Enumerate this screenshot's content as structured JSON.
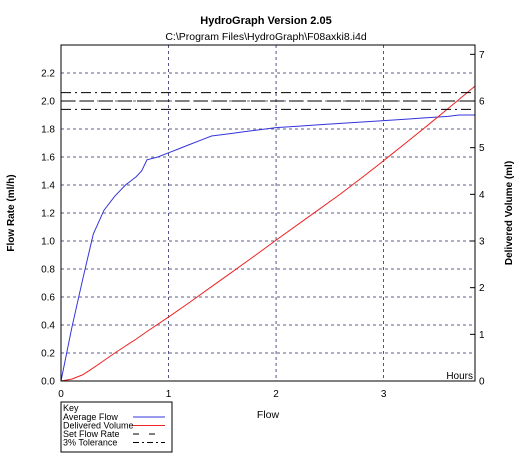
{
  "chart_data": {
    "type": "line",
    "title": "HydroGraph Version 2.05",
    "subtitle": "C:\\Program Files\\HydroGraph\\F08axki8.i4d",
    "xlabel": "Flow",
    "x_unit_label": "Hours",
    "ylabel": "Flow Rate (ml/h)",
    "y2label": "Delivered Volume (ml)",
    "xlim": [
      0,
      3.85
    ],
    "ylim": [
      0,
      2.4
    ],
    "y2lim": [
      0,
      7.2
    ],
    "x_ticks": [
      "0",
      "1",
      "2",
      "3"
    ],
    "y_ticks": [
      "0.0",
      "0.2",
      "0.4",
      "0.6",
      "0.8",
      "1.0",
      "1.2",
      "1.4",
      "1.6",
      "1.8",
      "2.0",
      "2.2"
    ],
    "y2_ticks": [
      "0",
      "1",
      "2",
      "3",
      "4",
      "5",
      "6",
      "7"
    ],
    "grid": true,
    "legend_position": "bottom-left",
    "legend_title": "Key",
    "series": [
      {
        "name": "Average Flow",
        "color": "#3333dd",
        "style": "solid",
        "axis": "left",
        "x": [
          0,
          0.1,
          0.2,
          0.3,
          0.4,
          0.5,
          0.6,
          0.7,
          0.75,
          0.8,
          0.9,
          1.0,
          1.1,
          1.2,
          1.3,
          1.4,
          1.5,
          1.6,
          1.7,
          1.8,
          1.9,
          2.0,
          2.2,
          2.4,
          2.6,
          2.8,
          3.0,
          3.2,
          3.4,
          3.6,
          3.7,
          3.85
        ],
        "y": [
          0,
          0.38,
          0.72,
          1.05,
          1.22,
          1.32,
          1.4,
          1.46,
          1.5,
          1.58,
          1.6,
          1.63,
          1.66,
          1.69,
          1.72,
          1.75,
          1.76,
          1.77,
          1.78,
          1.79,
          1.8,
          1.81,
          1.82,
          1.83,
          1.84,
          1.85,
          1.86,
          1.87,
          1.88,
          1.89,
          1.9,
          1.9
        ]
      },
      {
        "name": "Delivered Volume",
        "color": "#ee2222",
        "style": "solid",
        "axis": "right",
        "x": [
          0,
          0.1,
          0.2,
          0.3,
          0.4,
          0.5,
          0.6,
          0.7,
          0.8,
          1.0,
          1.2,
          1.4,
          1.6,
          1.8,
          2.0,
          2.2,
          2.4,
          2.6,
          2.8,
          3.0,
          3.2,
          3.4,
          3.6,
          3.85
        ],
        "y": [
          0,
          0.04,
          0.13,
          0.28,
          0.44,
          0.6,
          0.75,
          0.9,
          1.06,
          1.37,
          1.69,
          2.02,
          2.35,
          2.68,
          3.02,
          3.35,
          3.68,
          4.01,
          4.36,
          4.72,
          5.09,
          5.46,
          5.84,
          6.32
        ]
      },
      {
        "name": "Set Flow Rate",
        "color": "#000000",
        "style": "long-dash",
        "axis": "left",
        "value": 2.0
      },
      {
        "name": "3% Tolerance",
        "color": "#000000",
        "style": "dash-dot",
        "axis": "left",
        "values": [
          2.06,
          1.94
        ]
      }
    ]
  }
}
